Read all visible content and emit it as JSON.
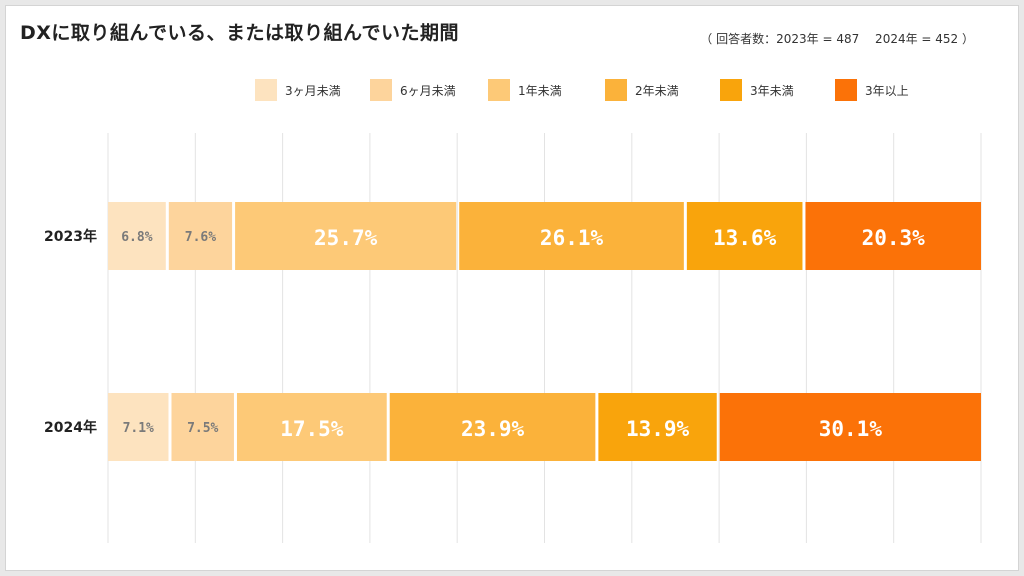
{
  "title": "DXに取り組んでいる、または取り組んでいた期間",
  "respondents": "（ 回答者数：2023年 = 487　 2024年 = 452 ）",
  "legend": [
    {
      "label": "3ヶ月未満",
      "color": "#fde3bf"
    },
    {
      "label": "6ヶ月未満",
      "color": "#fdd49c"
    },
    {
      "label": "1年未満",
      "color": "#fdc977"
    },
    {
      "label": "2年未満",
      "color": "#fbb23a"
    },
    {
      "label": "3年未満",
      "color": "#f9a40c"
    },
    {
      "label": "3年以上",
      "color": "#fb7208"
    }
  ],
  "chart_data": {
    "type": "bar",
    "orientation": "horizontal",
    "stacked": true,
    "categories": [
      "2023年",
      "2024年"
    ],
    "series": [
      {
        "name": "3ヶ月未満",
        "values": [
          6.8,
          7.1
        ],
        "color": "#fde3bf"
      },
      {
        "name": "6ヶ月未満",
        "values": [
          7.6,
          7.5
        ],
        "color": "#fdd49c"
      },
      {
        "name": "1年未満",
        "values": [
          25.7,
          17.5
        ],
        "color": "#fdc977"
      },
      {
        "name": "2年未満",
        "values": [
          26.1,
          23.9
        ],
        "color": "#fbb23a"
      },
      {
        "name": "3年未満",
        "values": [
          13.6,
          13.9
        ],
        "color": "#f9a40c"
      },
      {
        "name": "3年以上",
        "values": [
          20.3,
          30.1
        ],
        "color": "#fb7208"
      }
    ],
    "value_suffix": "%",
    "xlim": [
      0,
      100
    ],
    "grid": true,
    "legend_position": "top"
  }
}
